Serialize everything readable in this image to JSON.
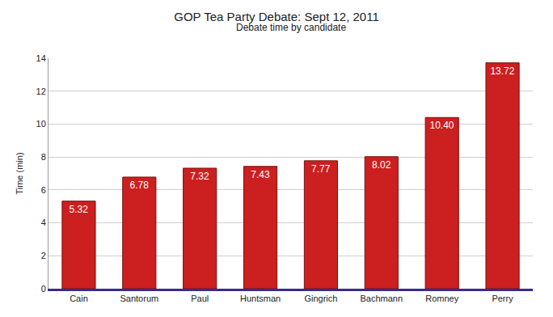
{
  "chart_data": {
    "type": "bar",
    "title": "GOP Tea Party Debate: Sept 12, 2011",
    "subtitle": "Debate time by candidate",
    "y_label": "Time (min)",
    "categories": [
      "Cain",
      "Santorum",
      "Paul",
      "Huntsman",
      "Gingrich",
      "Bachmann",
      "Romney",
      "Perry"
    ],
    "values": [
      5.32,
      6.78,
      7.32,
      7.43,
      7.77,
      8.02,
      10.4,
      13.72
    ],
    "value_labels": [
      "5.32",
      "6.78",
      "7.32",
      "7.43",
      "7.77",
      "8.02",
      "10.40",
      "13.72"
    ],
    "color": "#cc1f1f",
    "ylim": [
      0,
      14
    ],
    "yticks": [
      0,
      2,
      4,
      6,
      8,
      10,
      12,
      14
    ],
    "grid": true,
    "data_labels": true
  }
}
